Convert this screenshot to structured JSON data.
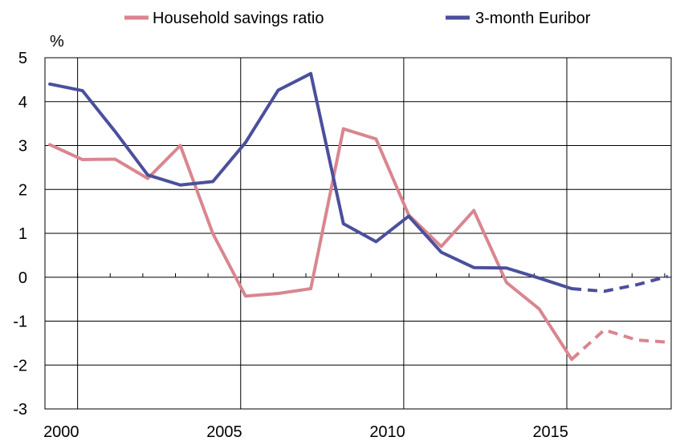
{
  "chart_data": {
    "type": "line",
    "title": "",
    "xlabel": "",
    "ylabel": "%",
    "xlim": [
      1999.5,
      2018.7
    ],
    "ylim": [
      -3,
      5
    ],
    "y_ticks": [
      5,
      4,
      3,
      2,
      1,
      0,
      -1,
      -2,
      -3
    ],
    "x_ticks": [
      2000,
      2005,
      2010,
      2015
    ],
    "grid": true,
    "legend_position": "top",
    "series": [
      {
        "name": "Household savings ratio",
        "color": "#d9868f",
        "values": [
          {
            "x": 1999.65,
            "y": 3.02
          },
          {
            "x": 2000.65,
            "y": 2.68
          },
          {
            "x": 2001.65,
            "y": 2.69
          },
          {
            "x": 2002.65,
            "y": 2.25
          },
          {
            "x": 2003.65,
            "y": 3.0
          },
          {
            "x": 2004.65,
            "y": 0.99
          },
          {
            "x": 2005.65,
            "y": -0.43
          },
          {
            "x": 2006.65,
            "y": -0.37
          },
          {
            "x": 2007.65,
            "y": -0.26
          },
          {
            "x": 2008.65,
            "y": 3.38
          },
          {
            "x": 2009.65,
            "y": 3.15
          },
          {
            "x": 2010.65,
            "y": 1.42
          },
          {
            "x": 2011.65,
            "y": 0.7
          },
          {
            "x": 2012.65,
            "y": 1.52
          },
          {
            "x": 2013.65,
            "y": -0.12
          },
          {
            "x": 2014.65,
            "y": -0.72
          },
          {
            "x": 2015.65,
            "y": -1.87
          }
        ],
        "forecast": [
          {
            "x": 2015.65,
            "y": -1.87
          },
          {
            "x": 2016.65,
            "y": -1.2
          },
          {
            "x": 2017.65,
            "y": -1.43
          },
          {
            "x": 2018.6,
            "y": -1.48
          }
        ]
      },
      {
        "name": "3-month Euribor",
        "color": "#4b4f9c",
        "values": [
          {
            "x": 1999.65,
            "y": 4.4
          },
          {
            "x": 2000.65,
            "y": 4.25
          },
          {
            "x": 2001.65,
            "y": 3.32
          },
          {
            "x": 2002.65,
            "y": 2.33
          },
          {
            "x": 2003.65,
            "y": 2.1
          },
          {
            "x": 2004.65,
            "y": 2.18
          },
          {
            "x": 2005.65,
            "y": 3.07
          },
          {
            "x": 2006.65,
            "y": 4.26
          },
          {
            "x": 2007.65,
            "y": 4.64
          },
          {
            "x": 2008.65,
            "y": 1.22
          },
          {
            "x": 2009.65,
            "y": 0.81
          },
          {
            "x": 2010.65,
            "y": 1.39
          },
          {
            "x": 2011.65,
            "y": 0.57
          },
          {
            "x": 2012.65,
            "y": 0.22
          },
          {
            "x": 2013.65,
            "y": 0.21
          },
          {
            "x": 2014.65,
            "y": -0.02
          },
          {
            "x": 2015.65,
            "y": -0.26
          }
        ],
        "forecast": [
          {
            "x": 2015.65,
            "y": -0.26
          },
          {
            "x": 2016.65,
            "y": -0.32
          },
          {
            "x": 2017.65,
            "y": -0.17
          },
          {
            "x": 2018.6,
            "y": 0.02
          }
        ]
      }
    ]
  }
}
